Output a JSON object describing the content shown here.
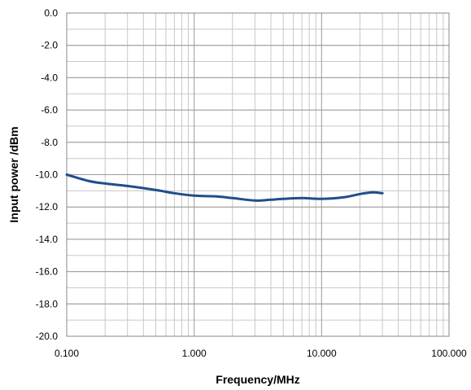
{
  "chart_data": {
    "type": "line",
    "title": "",
    "xlabel": "Frequency/MHz",
    "ylabel": "Input power /dBm",
    "x_scale": "log",
    "xlim": [
      0.1,
      100
    ],
    "ylim": [
      -20,
      0
    ],
    "x_ticks": [
      0.1,
      1,
      10,
      100
    ],
    "x_tick_labels": [
      "0.100",
      "1.000",
      "10.000",
      "100.000"
    ],
    "y_ticks": [
      0,
      -2,
      -4,
      -6,
      -8,
      -10,
      -12,
      -14,
      -16,
      -18,
      -20
    ],
    "y_tick_labels": [
      "0.0",
      "-2.0",
      "-4.0",
      "-6.0",
      "-8.0",
      "-10.0",
      "-12.0",
      "-14.0",
      "-16.0",
      "-18.0",
      "-20.0"
    ],
    "y_minor_step": 1,
    "grid": true,
    "legend": "none",
    "series": [
      {
        "color": "#1f4e8c",
        "x": [
          0.1,
          0.15,
          0.2,
          0.3,
          0.5,
          0.7,
          1.0,
          1.5,
          2.0,
          3.0,
          4.0,
          5.0,
          7.0,
          10.0,
          15.0,
          20.0,
          25.0,
          30.0
        ],
        "y": [
          -10.0,
          -10.4,
          -10.55,
          -10.7,
          -10.95,
          -11.15,
          -11.3,
          -11.35,
          -11.45,
          -11.6,
          -11.55,
          -11.5,
          -11.45,
          -11.5,
          -11.4,
          -11.2,
          -11.1,
          -11.15
        ]
      }
    ]
  }
}
